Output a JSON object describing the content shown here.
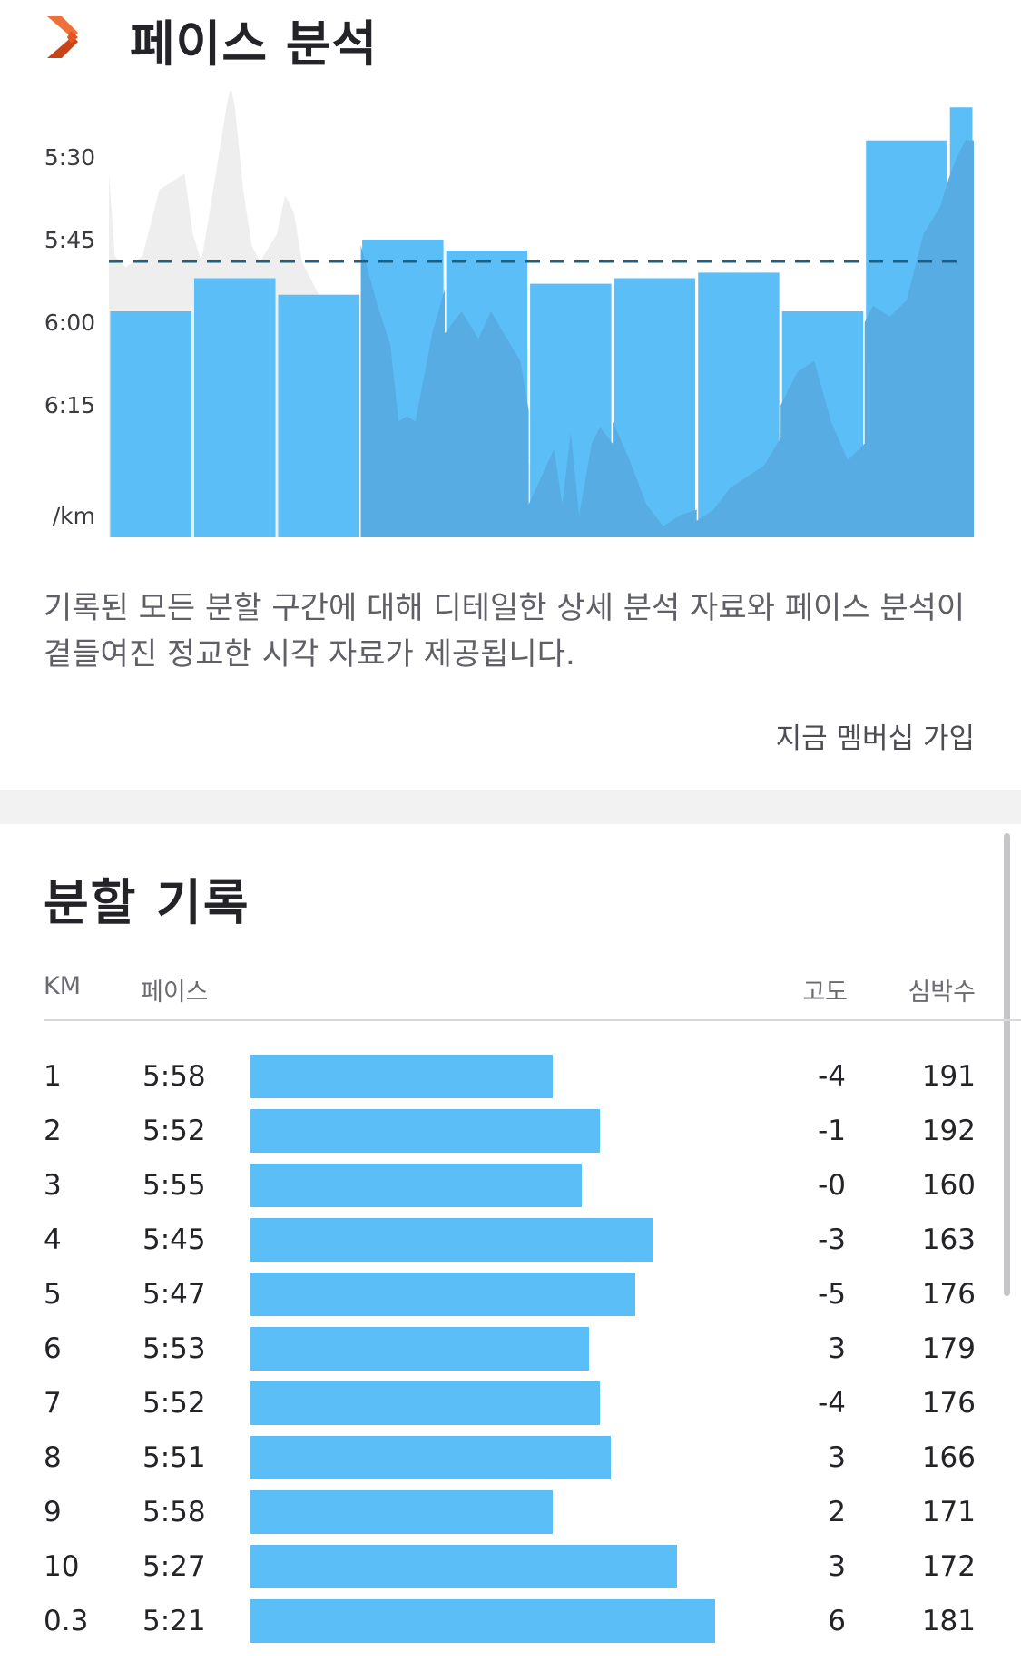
{
  "header": {
    "title": "페이스 분석",
    "icon": "strava-chevron-icon",
    "accent": "#e4561f"
  },
  "chart_data": {
    "type": "bar",
    "y_tick_labels": [
      "5:30",
      "5:45",
      "6:00",
      "6:15"
    ],
    "y_unit": "/km",
    "y_ticks_sec": [
      330,
      345,
      360,
      375
    ],
    "y_range_sec": [
      318,
      399
    ],
    "categories": [
      "1",
      "2",
      "3",
      "4",
      "5",
      "6",
      "7",
      "8",
      "9",
      "10",
      "0.3"
    ],
    "values_sec": [
      358,
      352,
      355,
      345,
      347,
      353,
      352,
      351,
      358,
      327,
      321
    ],
    "widths_km": [
      1,
      1,
      1,
      1,
      1,
      1,
      1,
      1,
      1,
      1,
      0.3
    ],
    "average_line_sec": [
      349
    ],
    "gray_profile_sec": [
      [
        0,
        333
      ],
      [
        0.07,
        348
      ],
      [
        0.2,
        350
      ],
      [
        0.4,
        348
      ],
      [
        0.6,
        336
      ],
      [
        0.9,
        333
      ],
      [
        1.0,
        344
      ],
      [
        1.1,
        349
      ],
      [
        1.2,
        340
      ],
      [
        1.4,
        321
      ],
      [
        1.45,
        317
      ],
      [
        1.5,
        321
      ],
      [
        1.6,
        336
      ],
      [
        1.7,
        346
      ],
      [
        1.8,
        349
      ],
      [
        2.0,
        344
      ],
      [
        2.1,
        337
      ],
      [
        2.2,
        340
      ],
      [
        2.3,
        349
      ],
      [
        2.5,
        355
      ],
      [
        3.0,
        355
      ],
      [
        3.0,
        356
      ],
      [
        3.2,
        367
      ],
      [
        3.4,
        364
      ],
      [
        3.55,
        365
      ],
      [
        4.0,
        352
      ],
      [
        4.0,
        363
      ],
      [
        4.3,
        358
      ],
      [
        4.5,
        362
      ],
      [
        4.7,
        358
      ],
      [
        4.9,
        362
      ],
      [
        5.0,
        365
      ],
      [
        5.0,
        386
      ],
      [
        5.15,
        380
      ],
      [
        5.3,
        385
      ],
      [
        5.5,
        395
      ],
      [
        5.65,
        378
      ],
      [
        5.8,
        393
      ],
      [
        6.0,
        390
      ],
      [
        6.0,
        388
      ],
      [
        6.2,
        385
      ],
      [
        6.4,
        394
      ],
      [
        6.6,
        392
      ],
      [
        6.8,
        395
      ],
      [
        7.0,
        394
      ],
      [
        7.0,
        396
      ],
      [
        7.3,
        394
      ],
      [
        7.5,
        388
      ],
      [
        7.7,
        386
      ],
      [
        8.0,
        380
      ],
      [
        8.0,
        378
      ],
      [
        8.2,
        372
      ],
      [
        8.4,
        370
      ],
      [
        8.6,
        378
      ],
      [
        8.8,
        388
      ],
      [
        9.0,
        382
      ],
      [
        9.0,
        368
      ],
      [
        9.2,
        363
      ],
      [
        9.4,
        361
      ],
      [
        9.6,
        357
      ],
      [
        9.8,
        349
      ],
      [
        10.0,
        342
      ],
      [
        10.1,
        336
      ],
      [
        10.2,
        329
      ],
      [
        10.25,
        326
      ],
      [
        10.3,
        327
      ]
    ],
    "dark_profile_sec": [
      [
        3.0,
        346
      ],
      [
        3.2,
        357
      ],
      [
        3.35,
        364
      ],
      [
        3.45,
        378
      ],
      [
        3.55,
        377
      ],
      [
        3.65,
        378
      ],
      [
        3.75,
        370
      ],
      [
        3.85,
        362
      ],
      [
        4.0,
        354
      ],
      [
        4.0,
        362
      ],
      [
        4.2,
        358
      ],
      [
        4.4,
        363
      ],
      [
        4.55,
        358
      ],
      [
        4.7,
        362
      ],
      [
        4.9,
        367
      ],
      [
        5.0,
        376
      ],
      [
        5.0,
        393
      ],
      [
        5.15,
        388
      ],
      [
        5.3,
        383
      ],
      [
        5.4,
        393
      ],
      [
        5.5,
        380
      ],
      [
        5.6,
        395
      ],
      [
        5.75,
        382
      ],
      [
        5.85,
        379
      ],
      [
        6.0,
        382
      ],
      [
        6.0,
        378
      ],
      [
        6.2,
        385
      ],
      [
        6.4,
        393
      ],
      [
        6.6,
        397
      ],
      [
        6.8,
        395
      ],
      [
        7.0,
        394
      ],
      [
        7.0,
        396
      ],
      [
        7.2,
        394
      ],
      [
        7.4,
        390
      ],
      [
        7.6,
        388
      ],
      [
        7.8,
        386
      ],
      [
        8.0,
        381
      ],
      [
        8.0,
        375
      ],
      [
        8.2,
        369
      ],
      [
        8.4,
        367
      ],
      [
        8.6,
        378
      ],
      [
        8.8,
        385
      ],
      [
        9.0,
        382
      ],
      [
        9.0,
        360
      ],
      [
        9.1,
        357
      ],
      [
        9.3,
        359
      ],
      [
        9.5,
        356
      ],
      [
        9.7,
        344
      ],
      [
        9.9,
        339
      ],
      [
        10.0,
        334
      ],
      [
        10.1,
        330
      ],
      [
        10.2,
        327
      ],
      [
        10.3,
        327
      ]
    ],
    "colors": {
      "bar": "#5bbef7",
      "bar_dark": "#56ace3",
      "profile": "#eeeeef",
      "average_line": "#1f5f80"
    }
  },
  "description": "기록된 모든 분할 구간에 대해 디테일한 상세 분석 자료와 페이스 분석이 곁들여진 정교한 시각 자료가 제공됩니다.",
  "cta_label": "지금 멤버십 가입",
  "splits": {
    "title": "분할 기록",
    "headers": {
      "km": "KM",
      "pace": "페이스",
      "elev": "고도",
      "hr": "심박수"
    },
    "bar_color": "#5bbef7",
    "rows": [
      {
        "km": "1",
        "pace": "5:58",
        "elev": "-4",
        "hr": "191",
        "bar_fraction": 0.652
      },
      {
        "km": "2",
        "pace": "5:52",
        "elev": "-1",
        "hr": "192",
        "bar_fraction": 0.752
      },
      {
        "km": "3",
        "pace": "5:55",
        "elev": "-0",
        "hr": "160",
        "bar_fraction": 0.714
      },
      {
        "km": "4",
        "pace": "5:45",
        "elev": "-3",
        "hr": "163",
        "bar_fraction": 0.867
      },
      {
        "km": "5",
        "pace": "5:47",
        "elev": "-5",
        "hr": "176",
        "bar_fraction": 0.829
      },
      {
        "km": "6",
        "pace": "5:53",
        "elev": "3",
        "hr": "179",
        "bar_fraction": 0.729
      },
      {
        "km": "7",
        "pace": "5:52",
        "elev": "-4",
        "hr": "176",
        "bar_fraction": 0.752
      },
      {
        "km": "8",
        "pace": "5:51",
        "elev": "3",
        "hr": "166",
        "bar_fraction": 0.776
      },
      {
        "km": "9",
        "pace": "5:58",
        "elev": "2",
        "hr": "171",
        "bar_fraction": 0.652
      },
      {
        "km": "10",
        "pace": "5:27",
        "elev": "3",
        "hr": "172",
        "bar_fraction": 0.919
      },
      {
        "km": "0.3",
        "pace": "5:21",
        "elev": "6",
        "hr": "181",
        "bar_fraction": 1.0
      }
    ]
  }
}
